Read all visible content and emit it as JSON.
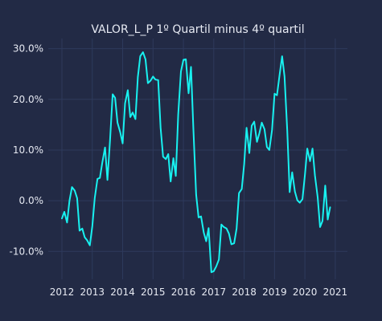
{
  "chart_data": {
    "type": "line",
    "title": "VALOR_L_P 1º Quartil minus 4º quartil",
    "xlabel": "",
    "ylabel": "",
    "x_ticks": [
      "2012",
      "2013",
      "2014",
      "2015",
      "2016",
      "2017",
      "2018",
      "2019",
      "2020",
      "2021"
    ],
    "y_ticks": [
      "-10.0%",
      "0.0%",
      "10.0%",
      "20.0%",
      "30.0%"
    ],
    "xlim": [
      2011.55,
      2021.4
    ],
    "ylim": [
      -15.5,
      32
    ],
    "grid": true,
    "colors": {
      "background": "#222a45",
      "grid": "#2e3a5c",
      "line": "#18f1f0",
      "text": "#e6e9f2"
    },
    "series": [
      {
        "values": [
          [
            2012.0,
            -3.5
          ],
          [
            2012.08,
            -2.2
          ],
          [
            2012.17,
            -4.3
          ],
          [
            2012.25,
            0.0
          ],
          [
            2012.33,
            2.7
          ],
          [
            2012.42,
            2.0
          ],
          [
            2012.5,
            0.5
          ],
          [
            2012.58,
            -5.9
          ],
          [
            2012.67,
            -5.5
          ],
          [
            2012.75,
            -7.2
          ],
          [
            2012.83,
            -7.8
          ],
          [
            2012.92,
            -8.8
          ],
          [
            2013.0,
            -5.0
          ],
          [
            2013.08,
            0.5
          ],
          [
            2013.17,
            4.3
          ],
          [
            2013.25,
            4.5
          ],
          [
            2013.33,
            7.5
          ],
          [
            2013.42,
            10.5
          ],
          [
            2013.5,
            4.1
          ],
          [
            2013.58,
            11.6
          ],
          [
            2013.67,
            21.0
          ],
          [
            2013.75,
            20.3
          ],
          [
            2013.83,
            15.4
          ],
          [
            2013.92,
            13.5
          ],
          [
            2014.0,
            11.3
          ],
          [
            2014.08,
            19.2
          ],
          [
            2014.17,
            21.8
          ],
          [
            2014.25,
            16.5
          ],
          [
            2014.33,
            17.4
          ],
          [
            2014.42,
            16.1
          ],
          [
            2014.5,
            24.4
          ],
          [
            2014.58,
            28.5
          ],
          [
            2014.67,
            29.3
          ],
          [
            2014.75,
            27.9
          ],
          [
            2014.83,
            23.2
          ],
          [
            2014.92,
            23.7
          ],
          [
            2015.0,
            24.5
          ],
          [
            2015.08,
            23.9
          ],
          [
            2015.17,
            23.8
          ],
          [
            2015.25,
            14.4
          ],
          [
            2015.33,
            8.7
          ],
          [
            2015.42,
            8.2
          ],
          [
            2015.5,
            9.2
          ],
          [
            2015.58,
            3.8
          ],
          [
            2015.67,
            8.4
          ],
          [
            2015.75,
            4.9
          ],
          [
            2015.83,
            17.0
          ],
          [
            2015.92,
            25.5
          ],
          [
            2016.0,
            27.8
          ],
          [
            2016.08,
            27.9
          ],
          [
            2016.17,
            21.2
          ],
          [
            2016.25,
            26.4
          ],
          [
            2016.33,
            14.0
          ],
          [
            2016.42,
            1.2
          ],
          [
            2016.5,
            -3.3
          ],
          [
            2016.58,
            -3.1
          ],
          [
            2016.67,
            -6.3
          ],
          [
            2016.75,
            -8.0
          ],
          [
            2016.83,
            -5.4
          ],
          [
            2016.92,
            -14.1
          ],
          [
            2017.0,
            -13.9
          ],
          [
            2017.08,
            -13.0
          ],
          [
            2017.17,
            -11.6
          ],
          [
            2017.25,
            -4.7
          ],
          [
            2017.33,
            -5.2
          ],
          [
            2017.42,
            -5.5
          ],
          [
            2017.5,
            -6.5
          ],
          [
            2017.58,
            -8.6
          ],
          [
            2017.67,
            -8.4
          ],
          [
            2017.75,
            -5.5
          ],
          [
            2017.83,
            1.5
          ],
          [
            2017.92,
            2.3
          ],
          [
            2018.0,
            7.2
          ],
          [
            2018.08,
            14.4
          ],
          [
            2018.17,
            9.4
          ],
          [
            2018.25,
            14.8
          ],
          [
            2018.33,
            15.6
          ],
          [
            2018.42,
            11.6
          ],
          [
            2018.5,
            13.3
          ],
          [
            2018.58,
            15.4
          ],
          [
            2018.67,
            14.1
          ],
          [
            2018.75,
            10.6
          ],
          [
            2018.83,
            10.0
          ],
          [
            2018.92,
            14.0
          ],
          [
            2019.0,
            21.1
          ],
          [
            2019.08,
            20.8
          ],
          [
            2019.17,
            25.0
          ],
          [
            2019.25,
            28.5
          ],
          [
            2019.33,
            24.5
          ],
          [
            2019.42,
            13.8
          ],
          [
            2019.5,
            1.7
          ],
          [
            2019.58,
            5.6
          ],
          [
            2019.67,
            1.8
          ],
          [
            2019.75,
            0.1
          ],
          [
            2019.83,
            -0.4
          ],
          [
            2019.92,
            0.3
          ],
          [
            2020.0,
            5.0
          ],
          [
            2020.08,
            10.3
          ],
          [
            2020.17,
            7.8
          ],
          [
            2020.25,
            10.3
          ],
          [
            2020.33,
            5.0
          ],
          [
            2020.42,
            0.7
          ],
          [
            2020.5,
            -5.2
          ],
          [
            2020.58,
            -4.0
          ],
          [
            2020.67,
            3.0
          ],
          [
            2020.75,
            -3.7
          ],
          [
            2020.83,
            -1.3
          ]
        ]
      }
    ]
  }
}
